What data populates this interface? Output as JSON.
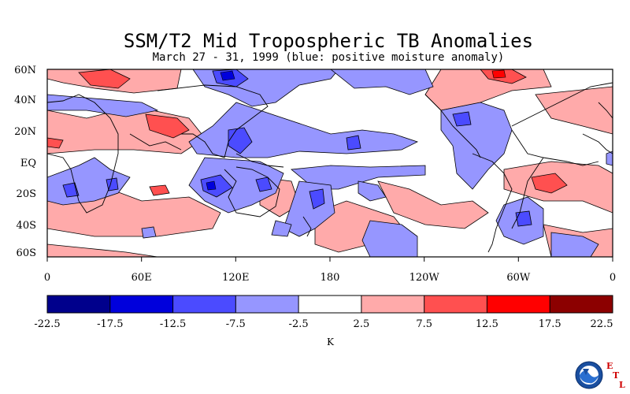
{
  "title": "SSM/T2 Mid Tropospheric TB Anomalies",
  "subtitle": "March 27 - 31, 1999 (blue: positive moisture anomaly)",
  "lat_labels": [
    "60N",
    "40N",
    "20N",
    "EQ",
    "20S",
    "40S",
    "60S"
  ],
  "lon_labels": [
    "0",
    "60E",
    "120E",
    "180",
    "120W",
    "60W",
    "0"
  ],
  "colorbar": {
    "colors": [
      "#00008c",
      "#0000dc",
      "#4b4bff",
      "#9696ff",
      "#ffffff",
      "#ffaaaa",
      "#ff5050",
      "#ff0000",
      "#8c0000"
    ],
    "labels": [
      "-22.5",
      "-17.5",
      "-12.5",
      "-7.5",
      "-2.5",
      "2.5",
      "7.5",
      "12.5",
      "17.5",
      "22.5"
    ],
    "unit": "K"
  },
  "logo": {
    "name": "NOAA",
    "letters": [
      "E",
      "T",
      "L"
    ]
  }
}
